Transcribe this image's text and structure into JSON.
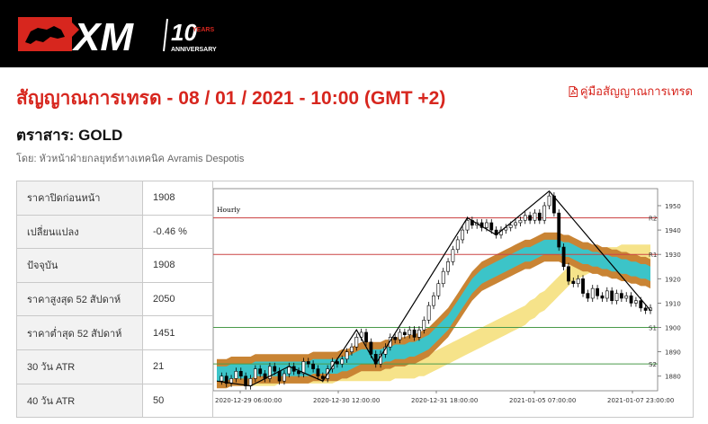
{
  "header": {
    "logo_text": "XM",
    "logo_badge": "10",
    "logo_years": "YEARS",
    "logo_anniversary": "ANNIVERSARY"
  },
  "title": "สัญญาณการเทรด - 08 / 01 / 2021 - 10:00 (GMT +2)",
  "manual_link": {
    "label": "คู่มือสัญญาณการเทรด",
    "icon": "pdf-icon"
  },
  "instrument": "ตราสาร: GOLD",
  "author": "โดย: หัวหน้าฝ่ายกลยุทธ์ทางเทคนิค Avramis Despotis",
  "stats": [
    {
      "label": "ราคาปิดก่อนหน้า",
      "value": "1908"
    },
    {
      "label": "เปลี่ยนแปลง",
      "value": "-0.46 %"
    },
    {
      "label": "ปัจจุบัน",
      "value": "1908"
    },
    {
      "label": "ราคาสูงสุด 52 สัปดาห์",
      "value": "2050"
    },
    {
      "label": "ราคาต่ำสุด 52 สัปดาห์",
      "value": "1451"
    },
    {
      "label": "30 วัน ATR",
      "value": "21"
    },
    {
      "label": "40 วัน ATR",
      "value": "50"
    }
  ],
  "colors": {
    "brand_red": "#d7261e",
    "band_brown": "#c98434",
    "band_teal": "#3cc4c8",
    "band_yellow": "#f6e38a",
    "resistance_line": "#cc4444",
    "support_line": "#4a9a4a"
  },
  "chart_data": {
    "type": "candlestick",
    "timeframe_label": "Hourly",
    "ylim": [
      1874,
      1957
    ],
    "y_ticks": [
      1880,
      1890,
      1900,
      1910,
      1920,
      1930,
      1940,
      1950
    ],
    "x_ticks": [
      "2020-12-29 06:00:00",
      "2020-12-30 12:00:00",
      "2020-12-31 18:00:00",
      "2021-01-05 07:00:00",
      "2021-01-07 23:00:00"
    ],
    "levels": [
      {
        "name": "R2",
        "value": 1945,
        "kind": "resistance"
      },
      {
        "name": "R1",
        "value": 1930,
        "kind": "resistance"
      },
      {
        "name": "S1",
        "value": 1900,
        "kind": "support"
      },
      {
        "name": "S2",
        "value": 1885,
        "kind": "support"
      }
    ],
    "price_path": [
      1878,
      1880,
      1877,
      1879,
      1882,
      1880,
      1876,
      1879,
      1883,
      1881,
      1879,
      1884,
      1882,
      1878,
      1881,
      1884,
      1882,
      1881,
      1886,
      1885,
      1883,
      1880,
      1879,
      1883,
      1886,
      1885,
      1887,
      1890,
      1892,
      1896,
      1898,
      1894,
      1889,
      1885,
      1889,
      1892,
      1896,
      1895,
      1898,
      1897,
      1899,
      1896,
      1899,
      1903,
      1909,
      1913,
      1918,
      1923,
      1927,
      1932,
      1936,
      1940,
      1944,
      1942,
      1943,
      1941,
      1943,
      1940,
      1938,
      1940,
      1941,
      1942,
      1943,
      1944,
      1946,
      1944,
      1947,
      1944,
      1950,
      1954,
      1947,
      1933,
      1925,
      1919,
      1918,
      1920,
      1914,
      1912,
      1916,
      1913,
      1912,
      1915,
      1911,
      1914,
      1912,
      1913,
      1910,
      1911,
      1908,
      1907,
      1908
    ],
    "zigzag": [
      {
        "i": 0,
        "v": 1878
      },
      {
        "i": 7,
        "v": 1876
      },
      {
        "i": 15,
        "v": 1884
      },
      {
        "i": 22,
        "v": 1878
      },
      {
        "i": 29,
        "v": 1899
      },
      {
        "i": 33,
        "v": 1885
      },
      {
        "i": 52,
        "v": 1945
      },
      {
        "i": 58,
        "v": 1938
      },
      {
        "i": 69,
        "v": 1956
      },
      {
        "i": 90,
        "v": 1907
      }
    ],
    "band_center": [
      1881,
      1881,
      1881,
      1882,
      1882,
      1882,
      1882,
      1882,
      1883,
      1883,
      1883,
      1883,
      1883,
      1883,
      1883,
      1883,
      1883,
      1883,
      1883,
      1883,
      1884,
      1884,
      1884,
      1884,
      1884,
      1884,
      1885,
      1885,
      1886,
      1887,
      1888,
      1888,
      1888,
      1888,
      1888,
      1889,
      1889,
      1890,
      1890,
      1890,
      1891,
      1891,
      1892,
      1893,
      1894,
      1896,
      1898,
      1900,
      1902,
      1905,
      1908,
      1911,
      1914,
      1917,
      1919,
      1921,
      1922,
      1923,
      1924,
      1925,
      1926,
      1927,
      1928,
      1929,
      1930,
      1930,
      1931,
      1932,
      1933,
      1933,
      1933,
      1933,
      1932,
      1932,
      1931,
      1930,
      1929,
      1929,
      1928,
      1928,
      1927,
      1927,
      1926,
      1926,
      1925,
      1925,
      1924,
      1924,
      1923,
      1923,
      1922
    ],
    "yellow_center": [
      1880,
      1880,
      1880,
      1880,
      1880,
      1880,
      1880,
      1880,
      1880,
      1880,
      1880,
      1880,
      1880,
      1881,
      1881,
      1881,
      1881,
      1881,
      1881,
      1881,
      1881,
      1881,
      1881,
      1881,
      1881,
      1882,
      1882,
      1882,
      1882,
      1882,
      1882,
      1882,
      1882,
      1882,
      1882,
      1882,
      1882,
      1883,
      1883,
      1883,
      1883,
      1883,
      1884,
      1884,
      1885,
      1886,
      1887,
      1888,
      1889,
      1890,
      1891,
      1892,
      1893,
      1894,
      1895,
      1896,
      1897,
      1898,
      1899,
      1900,
      1901,
      1902,
      1903,
      1904,
      1905,
      1907,
      1908,
      1910,
      1911,
      1913,
      1915,
      1917,
      1919,
      1921,
      1923,
      1924,
      1925,
      1926,
      1927,
      1928,
      1928,
      1929,
      1929,
      1929,
      1930,
      1930,
      1930,
      1930,
      1930,
      1930,
      1930
    ]
  }
}
